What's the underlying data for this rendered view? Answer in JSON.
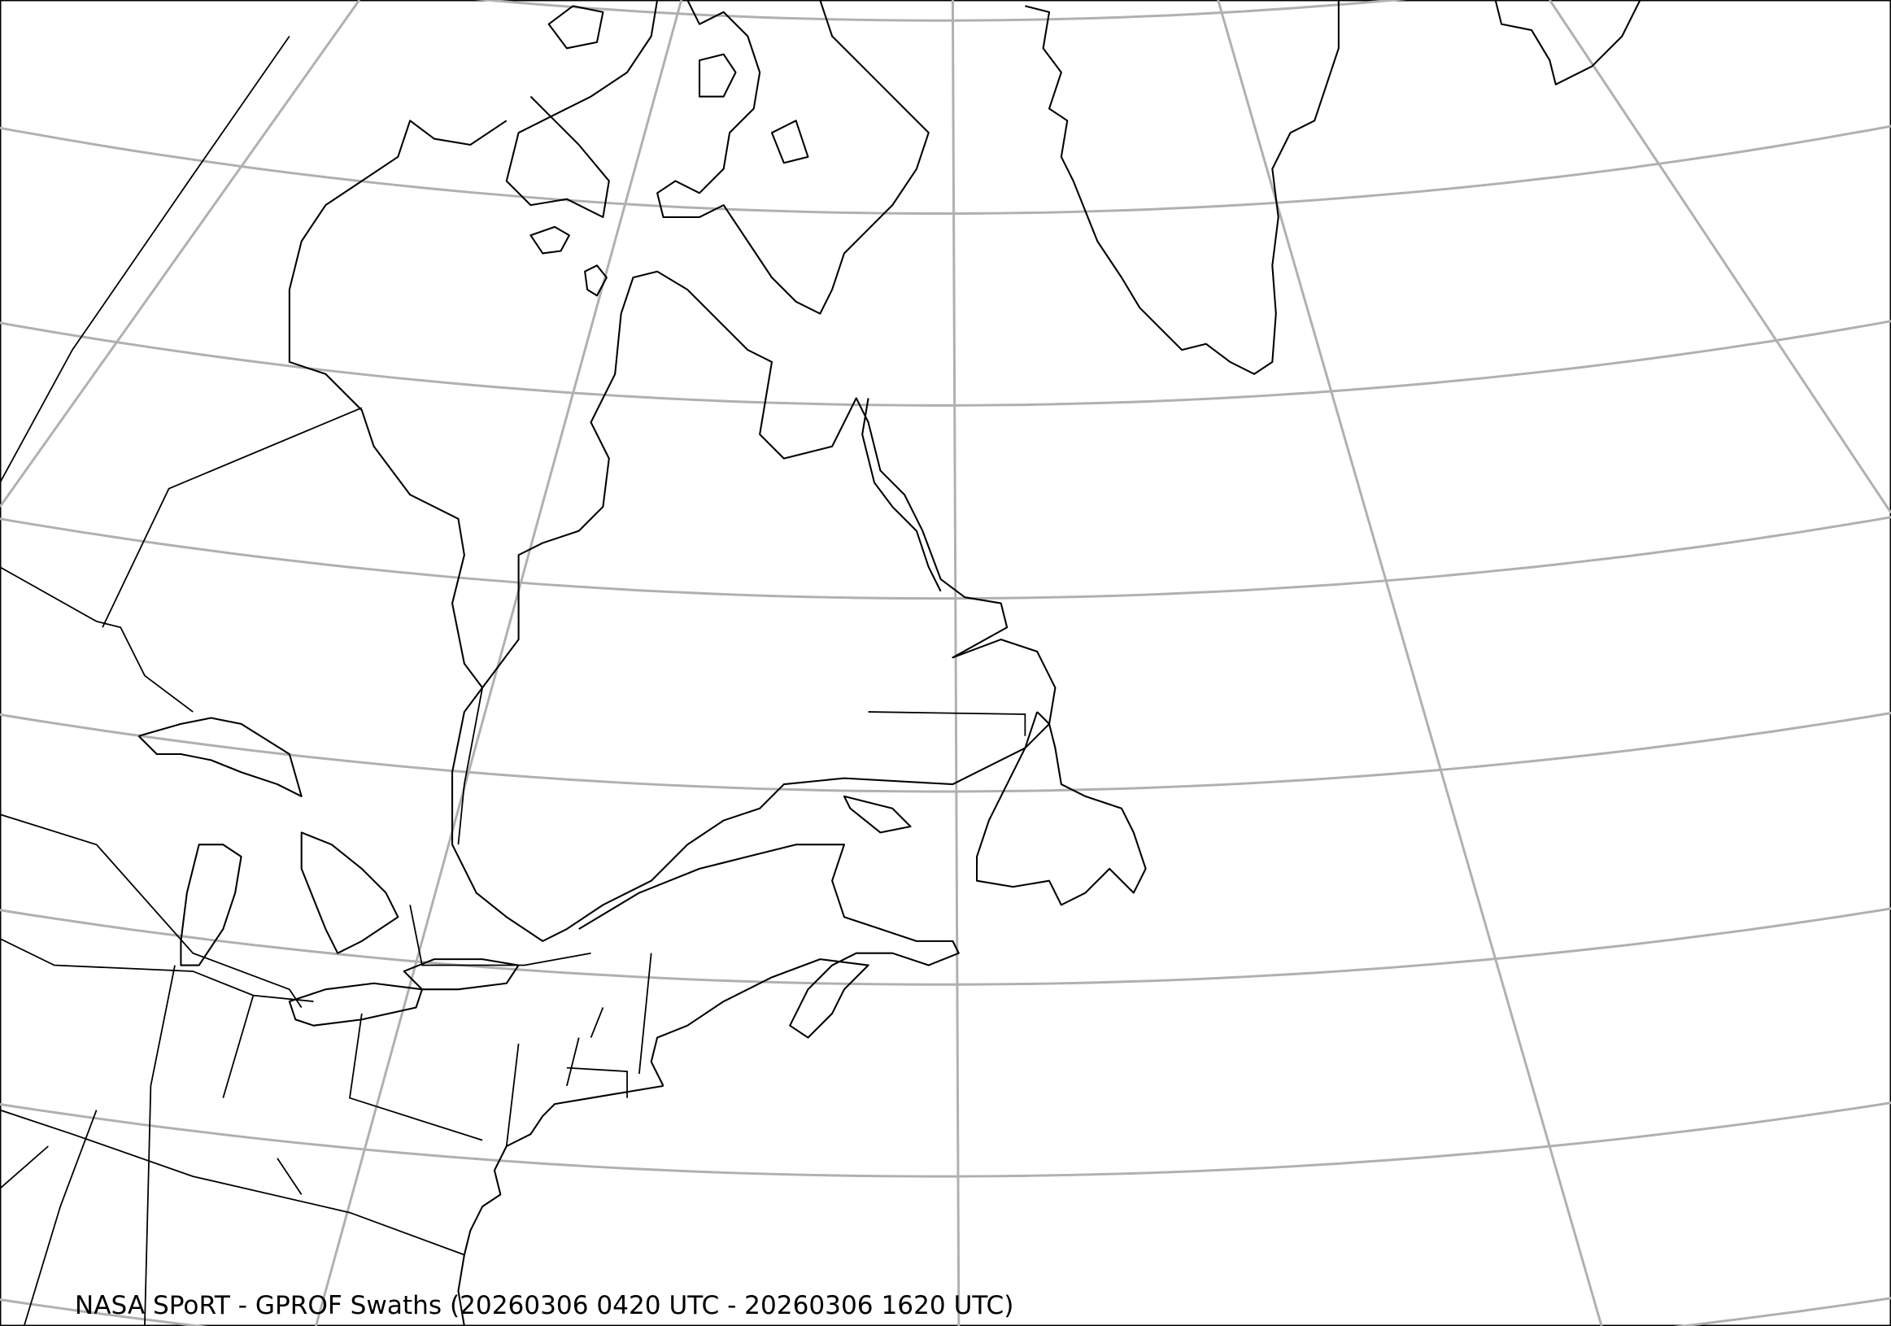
{
  "map": {
    "caption": "NASA SPoRT - GPROF Swaths (20260306 0420 UTC - 20260306 1620 UTC)",
    "projection": "conic",
    "region": "Northeastern North America, Greenland and North Atlantic",
    "gridlines": true,
    "colors": {
      "gridline": "#b0b0b0",
      "coastline": "#000000",
      "background": "#ffffff"
    }
  }
}
